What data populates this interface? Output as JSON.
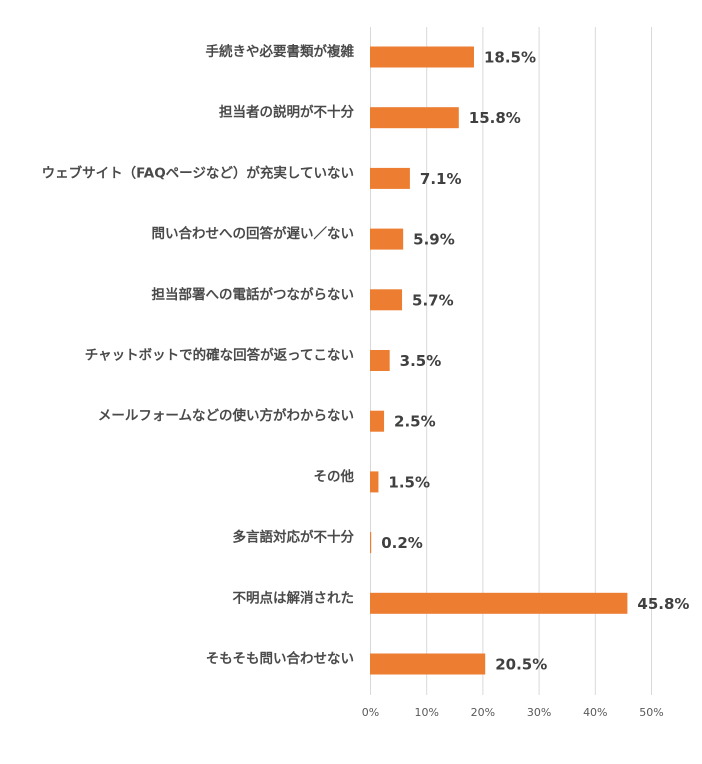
{
  "chart_data": {
    "type": "bar",
    "orientation": "horizontal",
    "categories": [
      "手続きや必要書類が複雑",
      "担当者の説明が不十分",
      "ウェブサイト（FAQページなど）が充実していない",
      "問い合わせへの回答が遅い／ない",
      "担当部署への電話がつながらない",
      "チャットボットで的確な回答が返ってこない",
      "メールフォームなどの使い方がわからない",
      "その他",
      "多言語対応が不十分",
      "不明点は解消された",
      "そもそも問い合わせない"
    ],
    "values": [
      18.5,
      15.8,
      7.1,
      5.9,
      5.7,
      3.5,
      2.5,
      1.5,
      0.2,
      45.8,
      20.5
    ],
    "data_labels": [
      "18.5%",
      "15.8%",
      "7.1%",
      "5.9%",
      "5.7%",
      "3.5%",
      "2.5%",
      "1.5%",
      "0.2%",
      "45.8%",
      "20.5%"
    ],
    "x_ticks": [
      "0%",
      "10%",
      "20%",
      "30%",
      "40%",
      "50%"
    ],
    "xlim": [
      0,
      50
    ],
    "grid": true,
    "legend": "none",
    "bar_color": "#ED7D31"
  }
}
